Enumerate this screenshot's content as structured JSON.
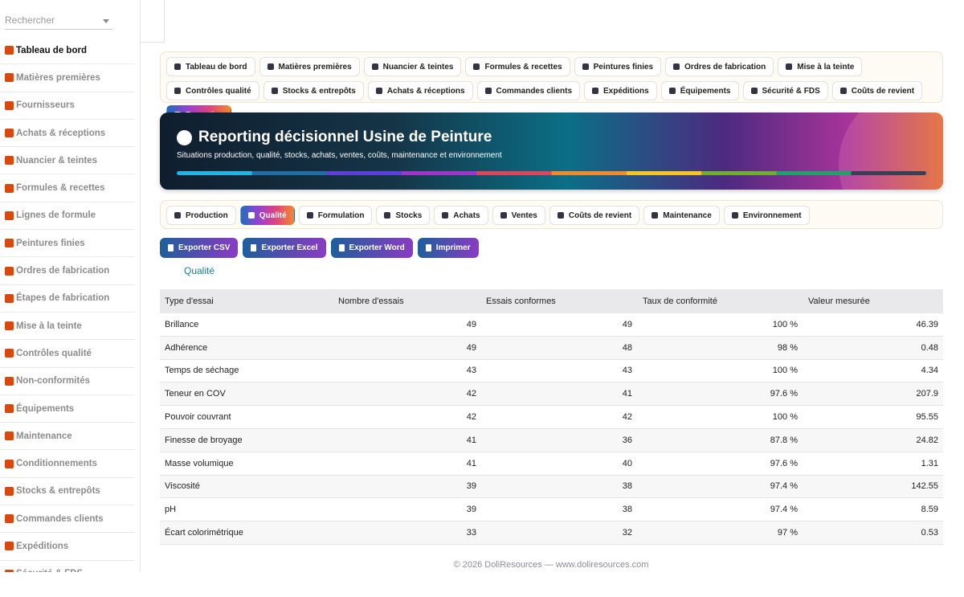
{
  "sidebar": {
    "search": "Rechercher",
    "items": [
      "Tableau de bord",
      "Matières premières",
      "Fournisseurs",
      "Achats & réceptions",
      "Nuancier & teintes",
      "Formules & recettes",
      "Lignes de formule",
      "Peintures finies",
      "Ordres de fabrication",
      "Étapes de fabrication",
      "Mise à la teinte",
      "Contrôles qualité",
      "Non-conformités",
      "Équipements",
      "Maintenance",
      "Conditionnements",
      "Stocks & entrepôts",
      "Commandes clients",
      "Expéditions",
      "Sécurité & FDS"
    ]
  },
  "nav": {
    "tabs": [
      {
        "label": "Tableau de bord"
      },
      {
        "label": "Matières premières"
      },
      {
        "label": "Nuancier & teintes"
      },
      {
        "label": "Formules & recettes"
      },
      {
        "label": "Peintures finies"
      },
      {
        "label": "Ordres de fabrication"
      },
      {
        "label": "Mise à la teinte"
      },
      {
        "label": "Contrôles qualité"
      },
      {
        "label": "Stocks & entrepôts"
      },
      {
        "label": "Achats & réceptions"
      },
      {
        "label": "Commandes clients"
      },
      {
        "label": "Expéditions"
      },
      {
        "label": "Équipements"
      },
      {
        "label": "Sécurité & FDS"
      },
      {
        "label": "Coûts de revient"
      },
      {
        "label": "Reporting",
        "active": true
      }
    ]
  },
  "banner": {
    "title": "Reporting décisionnel Usine de Peinture",
    "subtitle": "Situations production, qualité, stocks, achats, ventes, coûts, maintenance et environnement"
  },
  "subtabs": [
    {
      "label": "Production"
    },
    {
      "label": "Qualité",
      "active": true
    },
    {
      "label": "Formulation"
    },
    {
      "label": "Stocks"
    },
    {
      "label": "Achats"
    },
    {
      "label": "Ventes"
    },
    {
      "label": "Coûts de revient"
    },
    {
      "label": "Maintenance"
    },
    {
      "label": "Environnement"
    }
  ],
  "buttons": [
    "Exporter CSV",
    "Exporter Excel",
    "Exporter Word",
    "Imprimer"
  ],
  "section_title": "Qualité",
  "table": {
    "header": [
      "Type d'essai",
      "Nombre d'essais",
      "Essais conformes",
      "Taux de conformité",
      "Valeur mesurée"
    ],
    "rows": [
      [
        "Brillance",
        "49",
        "49",
        "100 %",
        "46.39"
      ],
      [
        "Adhérence",
        "49",
        "48",
        "98 %",
        "0.48"
      ],
      [
        "Temps de séchage",
        "43",
        "43",
        "100 %",
        "4.34"
      ],
      [
        "Teneur en COV",
        "42",
        "41",
        "97.6 %",
        "207.9"
      ],
      [
        "Pouvoir couvrant",
        "42",
        "42",
        "100 %",
        "95.55"
      ],
      [
        "Finesse de broyage",
        "41",
        "36",
        "87.8 %",
        "24.82"
      ],
      [
        "Masse volumique",
        "41",
        "40",
        "97.6 %",
        "1.31"
      ],
      [
        "Viscosité",
        "39",
        "38",
        "97.4 %",
        "142.55"
      ],
      [
        "pH",
        "39",
        "38",
        "97.4 %",
        "8.59"
      ],
      [
        "Écart colorimétrique",
        "33",
        "32",
        "97 %",
        "0.53"
      ]
    ]
  },
  "footer": "© 2026 DoliResources — www.doliresources.com"
}
